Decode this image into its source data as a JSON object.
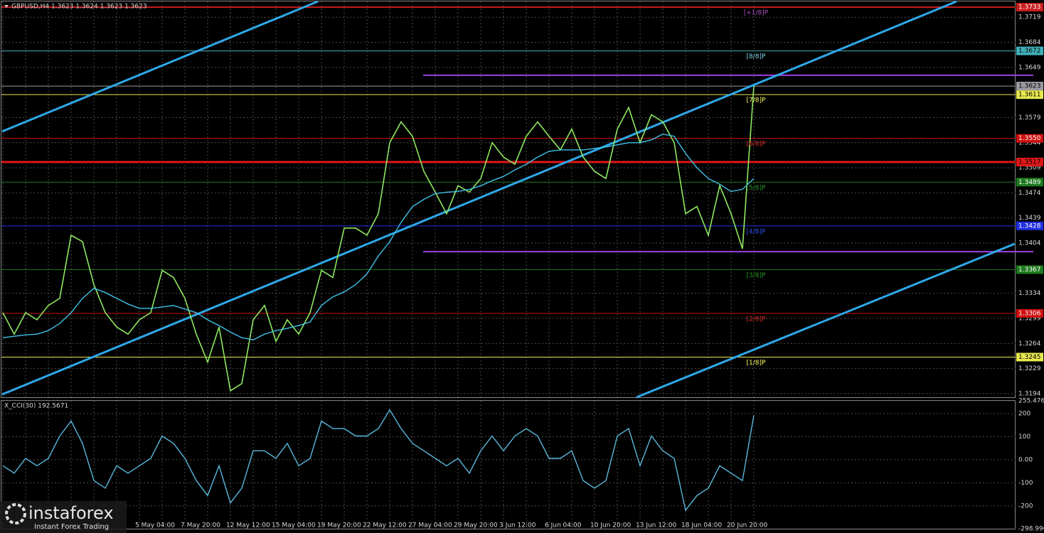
{
  "chart_data": [
    {
      "type": "line",
      "title": "GBPUSD,H4  1.3623 1.3624 1.3623 1.3623",
      "categories": [
        null,
        null,
        null,
        null,
        null,
        null,
        null,
        null,
        null,
        null,
        null,
        null,
        "5 May 04:00",
        null,
        null,
        null,
        "7 May 20:00",
        null,
        null,
        null,
        "12 May 12:00",
        null,
        null,
        null,
        "15 May 04:00",
        null,
        null,
        null,
        "19 May 20:00",
        null,
        null,
        null,
        "22 May 12:00",
        null,
        null,
        null,
        "27 May 04:00",
        null,
        null,
        null,
        "29 May 20:00",
        null,
        null,
        null,
        "3 Jun 12:00",
        null,
        null,
        null,
        "6 Jun 04:00",
        null,
        null,
        null,
        "10 Jun 20:00",
        null,
        null,
        null,
        "13 Jun 12:00",
        null,
        null,
        null,
        "18 Jun 04:00",
        null,
        null,
        null,
        "20 Jun 20:00",
        null,
        null
      ],
      "series": [
        {
          "color": "#8fe860",
          "values": [
            1.3307,
            1.3277,
            1.3307,
            1.3297,
            1.3317,
            1.3327,
            1.3415,
            1.3406,
            1.3346,
            1.3307,
            1.3287,
            1.3277,
            1.3297,
            1.3307,
            1.3366,
            1.3356,
            1.3327,
            1.3277,
            1.3238,
            1.3287,
            1.3198,
            1.3208,
            1.3297,
            1.3317,
            1.3267,
            1.3297,
            1.3277,
            1.3307,
            1.3366,
            1.3356,
            1.3425,
            1.3425,
            1.3415,
            1.3445,
            1.3544,
            1.3573,
            1.3553,
            1.3504,
            1.3475,
            1.3445,
            1.3484,
            1.3475,
            1.3494,
            1.3544,
            1.3524,
            1.3514,
            1.3553,
            1.3573,
            1.3553,
            1.3534,
            1.3563,
            1.3524,
            1.3504,
            1.3494,
            1.3563,
            1.3593,
            1.3544,
            1.3583,
            1.3573,
            1.3544,
            1.3445,
            1.3455,
            1.3415,
            1.3484,
            1.3445,
            1.3396,
            1.3623
          ]
        },
        {
          "color": "#3fc0e8",
          "values": [
            1.3272,
            1.3274,
            1.3276,
            1.3277,
            1.3282,
            1.3292,
            1.3307,
            1.3327,
            1.3341,
            1.3335,
            1.3327,
            1.3319,
            1.3313,
            1.3313,
            1.3315,
            1.3317,
            1.3312,
            1.3307,
            1.3297,
            1.3289,
            1.328,
            1.3272,
            1.3269,
            1.3277,
            1.3282,
            1.3285,
            1.3289,
            1.3294,
            1.3317,
            1.3329,
            1.3336,
            1.3346,
            1.3361,
            1.3386,
            1.3406,
            1.3433,
            1.3455,
            1.3465,
            1.3473,
            1.3475,
            1.3476,
            1.3479,
            1.3484,
            1.3491,
            1.3497,
            1.3506,
            1.3514,
            1.3524,
            1.3532,
            1.3534,
            1.3534,
            1.3534,
            1.3536,
            1.3538,
            1.3541,
            1.3544,
            1.3544,
            1.3548,
            1.3556,
            1.3553,
            1.3529,
            1.3509,
            1.3494,
            1.3486,
            1.3476,
            1.3479,
            1.3494
          ]
        }
      ],
      "ylim": [
        1.3189,
        1.3741
      ],
      "yticks": [
        1.3719,
        1.3684,
        1.3649,
        1.3579,
        1.3544,
        1.3509,
        1.3474,
        1.3439,
        1.3404,
        1.3334,
        1.3299,
        1.3264,
        1.3229,
        1.3194
      ],
      "grid": true,
      "levels": [
        {
          "value": 1.3733,
          "tag": "[+1/8]P",
          "color": "#c81e1e",
          "tag_color": "#b050c0",
          "width": 2
        },
        {
          "value": 1.3672,
          "tag": "[8/8]P",
          "color": "#40b0b8",
          "tag_color": "#80d8e8",
          "width": 1
        },
        {
          "value": 1.3623,
          "color": "#9a9aa0",
          "width": 1
        },
        {
          "value": 1.3611,
          "tag": "[7/8]P",
          "color": "#e8e850",
          "tag_color": "#ffff60",
          "width": 1
        },
        {
          "value": 1.355,
          "label": "1.3550",
          "tag": "[6/8]P",
          "color": "#d01010",
          "tag_color": "#e03030",
          "width": 1
        },
        {
          "value": 1.3517,
          "color": "#e01818",
          "width": 3
        },
        {
          "value": 1.3489,
          "tag": "[5/8]P",
          "color": "#1e7a1e",
          "tag_color": "#2a9a2a",
          "width": 1
        },
        {
          "value": 1.3428,
          "tag": "[4/8]P",
          "color": "#2030e0",
          "tag_color": "#3050ff",
          "width": 1
        },
        {
          "value": 1.3367,
          "tag": "[3/8]P",
          "color": "#1e7a1e",
          "tag_color": "#2a9a2a",
          "width": 1
        },
        {
          "value": 1.3306,
          "tag": "[2/8]P",
          "color": "#d01010",
          "tag_color": "#e03030",
          "width": 1
        },
        {
          "value": 1.3245,
          "tag": "[1/8]P",
          "color": "#e8e850",
          "tag_color": "#ffff60",
          "width": 1
        }
      ],
      "hlines": [
        {
          "value": 1.3638,
          "color": "#a040e0"
        },
        {
          "value": 1.3392,
          "color": "#a040e0"
        }
      ]
    },
    {
      "type": "line",
      "title": "X_CCI(30) 192.5671",
      "series": [
        {
          "color": "#5ab8dc",
          "values": [
            -26,
            -58,
            6,
            -26,
            6,
            103,
            168,
            71,
            -90,
            -123,
            -26,
            -58,
            -26,
            6,
            103,
            71,
            6,
            -90,
            -155,
            -26,
            -187,
            -123,
            39,
            39,
            6,
            71,
            -26,
            6,
            168,
            135,
            135,
            103,
            103,
            135,
            216,
            135,
            71,
            39,
            6,
            -26,
            6,
            -58,
            39,
            103,
            39,
            103,
            135,
            103,
            6,
            6,
            39,
            -90,
            -123,
            -90,
            103,
            135,
            -26,
            103,
            39,
            6,
            -219,
            -155,
            -123,
            -26,
            -58,
            -90,
            192.5671
          ]
        }
      ],
      "ylim": [
        -298.996,
        255.4768
      ],
      "yticks": [
        255.4768,
        200,
        100,
        {
          "value": 0,
          "label": "0.00"
        },
        -100,
        -200,
        -298.996
      ],
      "grid": true
    }
  ],
  "watermark": {
    "name": "instaforex",
    "slogan": "Instant Forex Trading"
  }
}
